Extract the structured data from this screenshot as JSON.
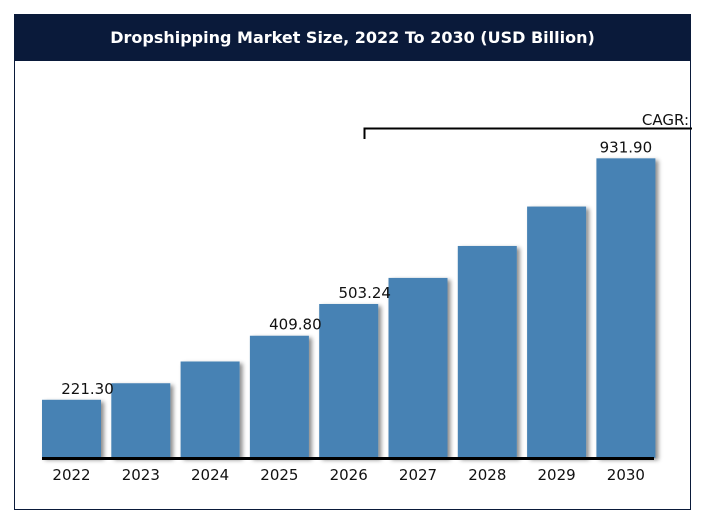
{
  "chart_data": {
    "type": "bar",
    "title": "Dropshipping Market Size, 2022 To 2030 (USD Billion)",
    "categories": [
      "2022",
      "2023",
      "2024",
      "2025",
      "2026",
      "2027",
      "2028",
      "2029",
      "2030"
    ],
    "values": [
      221.3,
      270,
      334,
      409.8,
      503.24,
      580,
      674,
      790,
      931.9
    ],
    "data_labels": {
      "2022": "221.30",
      "2025": "409.80",
      "2026": "503.24",
      "2030": "931.90"
    },
    "annotation": "CAGR:",
    "xlabel": "",
    "ylabel": "",
    "ylim": [
      50,
      1030
    ],
    "grid": false,
    "bar_color": "#4682b4",
    "header_color": "#0a1a3a"
  }
}
